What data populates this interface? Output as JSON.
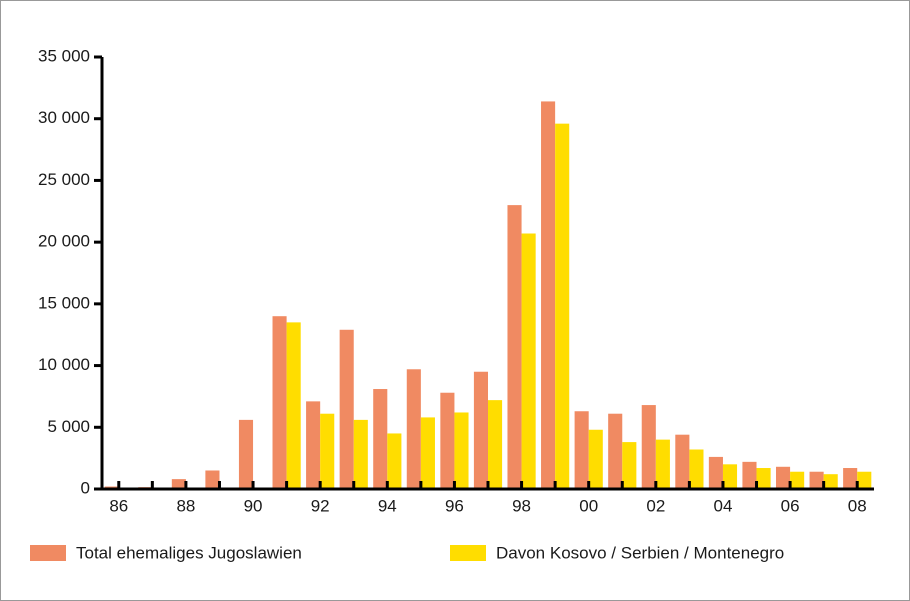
{
  "chart_data": {
    "type": "bar",
    "categories": [
      "86",
      null,
      "88",
      null,
      "90",
      null,
      "92",
      null,
      "94",
      null,
      "96",
      null,
      "98",
      null,
      "00",
      null,
      "02",
      null,
      "04",
      null,
      "06",
      null,
      "08"
    ],
    "series": [
      {
        "name": "Total ehemaliges Jugoslawien",
        "color": "#f08a62",
        "values": [
          200,
          150,
          800,
          1500,
          5600,
          14000,
          7100,
          12900,
          8100,
          9700,
          7800,
          9500,
          23000,
          31400,
          6300,
          6100,
          6800,
          4400,
          2600,
          2200,
          1800,
          1400,
          1700
        ]
      },
      {
        "name": "Davon Kosovo / Serbien / Montenegro",
        "color": "#ffdd00",
        "values": [
          0,
          0,
          0,
          0,
          0,
          13500,
          6100,
          5600,
          4500,
          5800,
          6200,
          7200,
          20700,
          29600,
          4800,
          3800,
          4000,
          3200,
          2000,
          1700,
          1400,
          1200,
          1400
        ]
      }
    ],
    "ylim": [
      0,
      35000
    ],
    "yticks": [
      0,
      {
        "value": 5000,
        "label": "5 000"
      },
      {
        "value": 10000,
        "label": "10 000"
      },
      {
        "value": 15000,
        "label": "15 000"
      },
      {
        "value": 20000,
        "label": "20 000"
      },
      {
        "value": 25000,
        "label": "25 000"
      },
      {
        "value": 30000,
        "label": "30 000"
      },
      {
        "value": 35000,
        "label": "35 000"
      }
    ],
    "legend": "bottom"
  }
}
